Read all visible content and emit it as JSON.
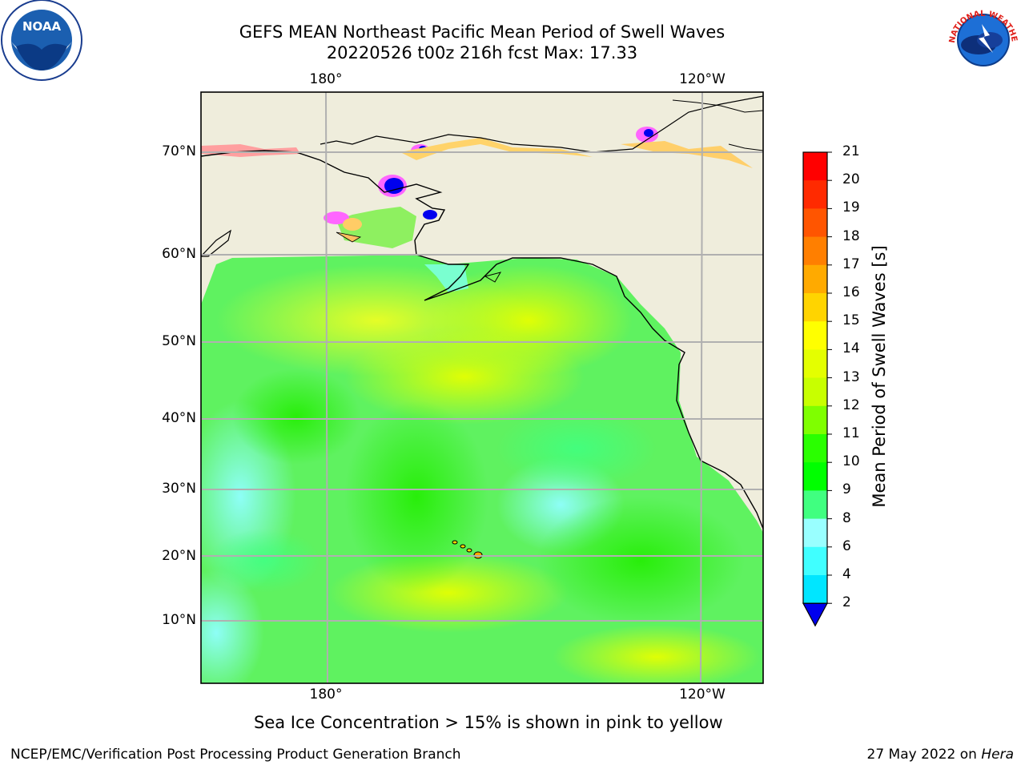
{
  "title": {
    "line1": "GEFS MEAN Northeast Pacific Mean Period of Swell Waves",
    "line2": "20220526 t00z 216h fcst   Max: 17.33"
  },
  "axes": {
    "lon_labels": [
      "180°",
      "120°W"
    ],
    "lat_labels": [
      "70°N",
      "60°N",
      "50°N",
      "40°N",
      "30°N",
      "20°N",
      "10°N"
    ]
  },
  "colorbar": {
    "label": "Mean Period of Swell Waves [s]",
    "ticks": [
      "21",
      "20",
      "19",
      "18",
      "17",
      "16",
      "15",
      "14",
      "13",
      "12",
      "11",
      "10",
      "9",
      "8",
      "6",
      "4",
      "2"
    ],
    "colors": [
      "#ff0000",
      "#ff2a00",
      "#ff5500",
      "#ff7f00",
      "#ffaa00",
      "#ffd400",
      "#ffff00",
      "#e4ff00",
      "#c8ff00",
      "#7fff00",
      "#2aff00",
      "#00ff00",
      "#40ff80",
      "#99ffff",
      "#40ffff",
      "#00e6ff",
      "#0080ff"
    ],
    "extend_color": "#0000ee"
  },
  "note": "Sea Ice Concentration > 15% is shown in pink to yellow",
  "footer": {
    "left": "NCEP/EMC/Verification Post Processing Product Generation Branch",
    "date": "27 May 2022 on ",
    "machine": "Hera"
  },
  "logos": {
    "left_text": "NOAA",
    "right_text": "NATIONAL WEATHER SERVICE"
  },
  "chart_data": {
    "type": "heatmap",
    "title": "GEFS MEAN Northeast Pacific Mean Period of Swell Waves",
    "subtitle": "20220526 t00z 216h fcst   Max: 17.33",
    "colorbar_label": "Mean Period of Swell Waves [s]",
    "colorbar_levels": [
      2,
      4,
      6,
      8,
      9,
      10,
      11,
      12,
      13,
      14,
      15,
      16,
      17,
      18,
      19,
      20,
      21
    ],
    "max": 17.33,
    "x_ticks": [
      "180°",
      "120°W"
    ],
    "y_ticks": [
      "70°N",
      "60°N",
      "50°N",
      "40°N",
      "30°N",
      "20°N",
      "10°N"
    ],
    "grid": true
  }
}
